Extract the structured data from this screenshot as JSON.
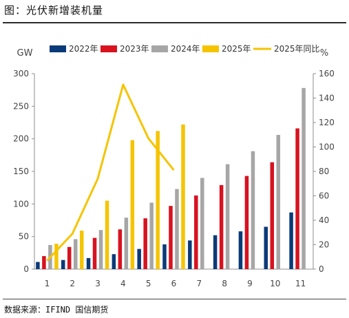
{
  "page": {
    "title": "图：光伏新增装机量",
    "source": "数据来源：IFIND 国信期货"
  },
  "colors": {
    "2022": "#0b3a78",
    "2023": "#d8121f",
    "2024": "#a6a6a6",
    "2025": "#f5c400",
    "yoy_line": "#f5c400"
  },
  "chart_data": {
    "type": "bar",
    "title": "",
    "xlabel": "",
    "ylabel": "GW",
    "y2label": "%",
    "ylim": [
      0,
      300
    ],
    "y2lim": [
      0,
      160
    ],
    "yticks": [
      0,
      50,
      100,
      150,
      200,
      250,
      300
    ],
    "y2ticks": [
      0,
      20,
      40,
      60,
      80,
      100,
      120,
      140,
      160
    ],
    "categories": [
      "1",
      "2",
      "3",
      "4",
      "5",
      "6",
      "7",
      "8",
      "9",
      "10",
      "11"
    ],
    "grid": false,
    "legend_position": "top",
    "series": [
      {
        "name": "2022年",
        "type": "bar",
        "axis": "left",
        "colorKey": "2022",
        "values": [
          11,
          14,
          17,
          23,
          31,
          38,
          44,
          52,
          58,
          65,
          87
        ]
      },
      {
        "name": "2023年",
        "type": "bar",
        "axis": "left",
        "colorKey": "2023",
        "values": [
          20,
          34,
          48,
          61,
          78,
          97,
          113,
          129,
          143,
          164,
          216
        ]
      },
      {
        "name": "2024年",
        "type": "bar",
        "axis": "left",
        "colorKey": "2024",
        "values": [
          37,
          46,
          60,
          79,
          102,
          123,
          140,
          161,
          181,
          206,
          278
        ]
      },
      {
        "name": "2025年",
        "type": "bar",
        "axis": "left",
        "colorKey": "2025",
        "values": [
          39,
          59,
          105,
          198,
          212,
          222,
          null,
          null,
          null,
          null,
          null
        ]
      },
      {
        "name": "2025年同比",
        "type": "line",
        "axis": "right",
        "colorKey": "yoy_line",
        "values": [
          7,
          29,
          74,
          151,
          107,
          81,
          null,
          null,
          null,
          null,
          null
        ]
      }
    ]
  }
}
